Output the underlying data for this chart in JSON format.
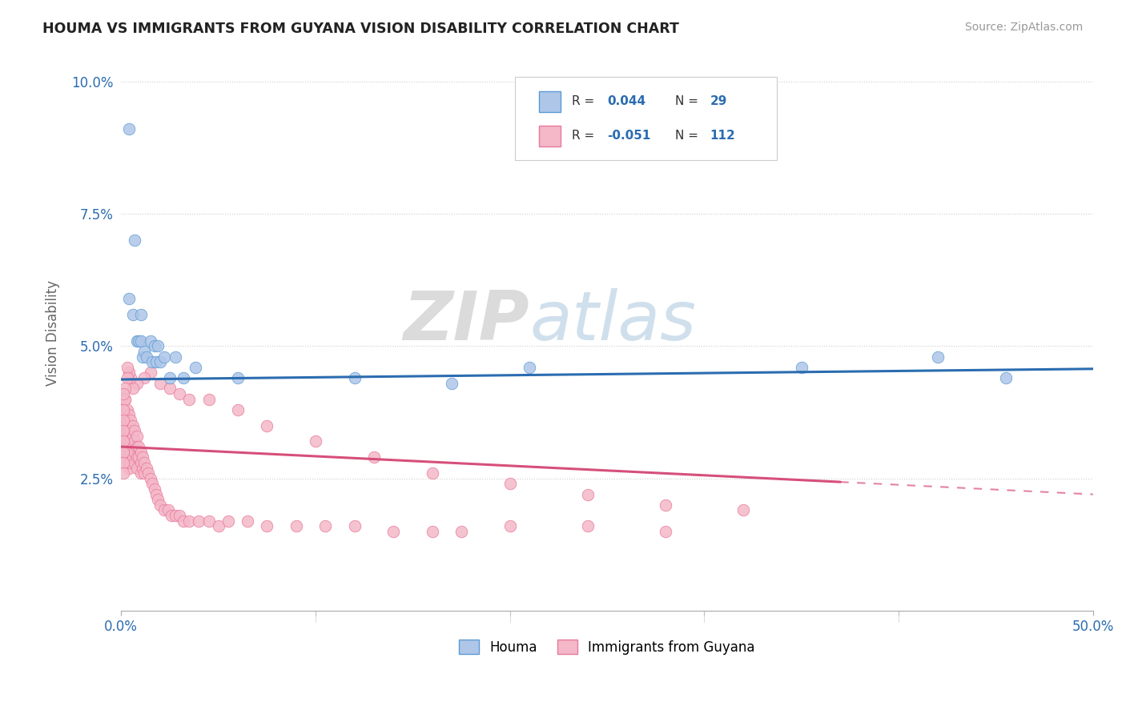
{
  "title": "HOUMA VS IMMIGRANTS FROM GUYANA VISION DISABILITY CORRELATION CHART",
  "source": "Source: ZipAtlas.com",
  "ylabel": "Vision Disability",
  "xlim": [
    0.0,
    0.5
  ],
  "ylim": [
    0.0,
    0.105
  ],
  "xtick_positions": [
    0.0,
    0.5
  ],
  "xtick_labels": [
    "0.0%",
    "50.0%"
  ],
  "ytick_positions": [
    0.025,
    0.05,
    0.075,
    0.1
  ],
  "ytick_labels": [
    "2.5%",
    "5.0%",
    "7.5%",
    "10.0%"
  ],
  "legend_labels": [
    "Houma",
    "Immigrants from Guyana"
  ],
  "houma_color": "#aec6e8",
  "guyana_color": "#f4b8c8",
  "houma_edge_color": "#5b9bd5",
  "guyana_edge_color": "#e8799a",
  "houma_line_color": "#2b6cb0",
  "guyana_line_color": "#d64f7a",
  "background_color": "#ffffff",
  "houma_x": [
    0.004,
    0.007,
    0.008,
    0.009,
    0.01,
    0.011,
    0.012,
    0.013,
    0.015,
    0.016,
    0.017,
    0.018,
    0.019,
    0.02,
    0.022,
    0.025,
    0.028,
    0.032,
    0.038,
    0.06,
    0.12,
    0.17,
    0.21,
    0.35,
    0.42,
    0.455,
    0.004,
    0.006,
    0.01
  ],
  "houma_y": [
    0.091,
    0.07,
    0.051,
    0.051,
    0.051,
    0.048,
    0.049,
    0.048,
    0.051,
    0.047,
    0.05,
    0.047,
    0.05,
    0.047,
    0.048,
    0.044,
    0.048,
    0.044,
    0.046,
    0.044,
    0.044,
    0.043,
    0.046,
    0.046,
    0.048,
    0.044,
    0.059,
    0.056,
    0.056
  ],
  "guyana_x": [
    0.001,
    0.001,
    0.001,
    0.001,
    0.001,
    0.001,
    0.002,
    0.002,
    0.002,
    0.002,
    0.002,
    0.002,
    0.003,
    0.003,
    0.003,
    0.003,
    0.003,
    0.003,
    0.004,
    0.004,
    0.004,
    0.004,
    0.004,
    0.004,
    0.005,
    0.005,
    0.005,
    0.005,
    0.005,
    0.006,
    0.006,
    0.006,
    0.006,
    0.007,
    0.007,
    0.007,
    0.007,
    0.008,
    0.008,
    0.008,
    0.008,
    0.009,
    0.009,
    0.01,
    0.01,
    0.01,
    0.011,
    0.011,
    0.012,
    0.012,
    0.013,
    0.014,
    0.015,
    0.016,
    0.017,
    0.018,
    0.019,
    0.02,
    0.022,
    0.024,
    0.026,
    0.028,
    0.03,
    0.032,
    0.035,
    0.04,
    0.045,
    0.05,
    0.055,
    0.065,
    0.075,
    0.09,
    0.105,
    0.12,
    0.14,
    0.16,
    0.175,
    0.2,
    0.24,
    0.28,
    0.045,
    0.06,
    0.075,
    0.1,
    0.13,
    0.16,
    0.2,
    0.24,
    0.28,
    0.32,
    0.02,
    0.025,
    0.03,
    0.035,
    0.015,
    0.012,
    0.008,
    0.006,
    0.005,
    0.004,
    0.003,
    0.003,
    0.002,
    0.002,
    0.001,
    0.001,
    0.001,
    0.001,
    0.001,
    0.001,
    0.001,
    0.001
  ],
  "guyana_y": [
    0.04,
    0.038,
    0.035,
    0.034,
    0.033,
    0.032,
    0.04,
    0.037,
    0.035,
    0.033,
    0.031,
    0.03,
    0.038,
    0.036,
    0.034,
    0.032,
    0.03,
    0.028,
    0.037,
    0.035,
    0.033,
    0.031,
    0.029,
    0.027,
    0.036,
    0.034,
    0.032,
    0.03,
    0.028,
    0.035,
    0.033,
    0.031,
    0.029,
    0.034,
    0.032,
    0.03,
    0.028,
    0.033,
    0.031,
    0.029,
    0.027,
    0.031,
    0.029,
    0.03,
    0.028,
    0.026,
    0.029,
    0.027,
    0.028,
    0.026,
    0.027,
    0.026,
    0.025,
    0.024,
    0.023,
    0.022,
    0.021,
    0.02,
    0.019,
    0.019,
    0.018,
    0.018,
    0.018,
    0.017,
    0.017,
    0.017,
    0.017,
    0.016,
    0.017,
    0.017,
    0.016,
    0.016,
    0.016,
    0.016,
    0.015,
    0.015,
    0.015,
    0.016,
    0.016,
    0.015,
    0.04,
    0.038,
    0.035,
    0.032,
    0.029,
    0.026,
    0.024,
    0.022,
    0.02,
    0.019,
    0.043,
    0.042,
    0.041,
    0.04,
    0.045,
    0.044,
    0.043,
    0.042,
    0.044,
    0.045,
    0.046,
    0.044,
    0.042,
    0.04,
    0.041,
    0.038,
    0.036,
    0.034,
    0.032,
    0.03,
    0.028,
    0.026
  ]
}
